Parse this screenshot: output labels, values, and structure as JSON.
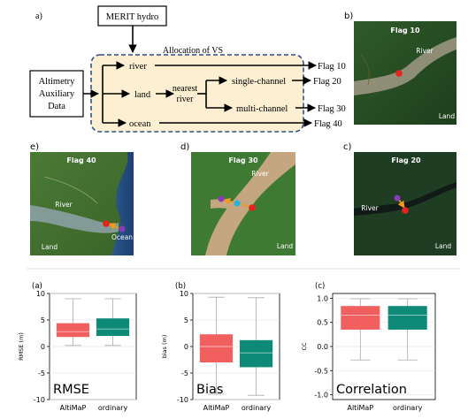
{
  "flowchart": {
    "panel_label": "a)",
    "merit_label": "MERIT hydro",
    "allocation_label": "Allocation of VS",
    "input_lines": [
      "Altimetry",
      "Auxiliary",
      "Data"
    ],
    "nodes": {
      "river": "river",
      "land": "land",
      "nearest_river_lines": [
        "nearest",
        "river"
      ],
      "single_channel": "single-channel",
      "multi_channel": "multi-channel",
      "ocean": "ocean"
    },
    "flags": {
      "flag10": "Flag 10",
      "flag20": "Flag 20",
      "flag30": "Flag 30",
      "flag40": "Flag 40"
    }
  },
  "maps": {
    "b": {
      "panel_label": "b)",
      "title": "Flag 10",
      "river": "River",
      "land": "Land"
    },
    "c": {
      "panel_label": "c)",
      "title": "Flag 20",
      "river": "River",
      "land": "Land"
    },
    "d": {
      "panel_label": "d)",
      "title": "Flag 30",
      "river": "River",
      "land": "Land"
    },
    "e": {
      "panel_label": "e)",
      "title": "Flag 40",
      "river": "River",
      "land": "Land",
      "ocean": "Ocean"
    }
  },
  "colors": {
    "box_fill": "#fdf0d2",
    "box_border": "#2f4f8f",
    "altimap": "#f15f5f",
    "ordinary": "#0d8a78",
    "marker_red": "#e8231e",
    "marker_purple": "#8a3db8",
    "marker_cyan": "#1fb4e6",
    "arrow_orange": "#f29a1a"
  },
  "chart_data": [
    {
      "type": "box",
      "panel_label": "(a)",
      "ylabel": "RMSE (m)",
      "ylim": [
        -10,
        10
      ],
      "yticks": [
        10,
        5,
        0,
        -5,
        -10
      ],
      "categories": [
        "AltiMaP",
        "ordinary"
      ],
      "annotation": "RMSE",
      "boxes": [
        {
          "name": "AltiMaP",
          "whisker_low": 0.2,
          "q1": 1.8,
          "median": 2.8,
          "q3": 4.4,
          "whisker_high": 9.0
        },
        {
          "name": "ordinary",
          "whisker_low": 0.2,
          "q1": 2.0,
          "median": 3.3,
          "q3": 5.3,
          "whisker_high": 9.0
        }
      ]
    },
    {
      "type": "box",
      "panel_label": "(b)",
      "ylabel": "bias (m)",
      "ylim": [
        -10,
        10
      ],
      "yticks": [
        10,
        5,
        0,
        -5,
        -10
      ],
      "categories": [
        "AltiMaP",
        "ordinary"
      ],
      "annotation": "Bias",
      "boxes": [
        {
          "name": "AltiMaP",
          "whisker_low": -9.0,
          "q1": -3.0,
          "median": 0.0,
          "q3": 2.3,
          "whisker_high": 9.3
        },
        {
          "name": "ordinary",
          "whisker_low": -9.2,
          "q1": -3.9,
          "median": -1.2,
          "q3": 1.2,
          "whisker_high": 9.2
        }
      ]
    },
    {
      "type": "box",
      "panel_label": "(c)",
      "ylabel": "CC",
      "ylim": [
        -1.1,
        1.1
      ],
      "yticks": [
        1.0,
        0.5,
        0.0,
        -0.5,
        -1.0
      ],
      "categories": [
        "AltiMaP",
        "ordinary"
      ],
      "annotation": "Correlation",
      "boxes": [
        {
          "name": "AltiMaP",
          "whisker_low": -0.28,
          "q1": 0.35,
          "median": 0.65,
          "q3": 0.84,
          "whisker_high": 0.99
        },
        {
          "name": "ordinary",
          "whisker_low": -0.28,
          "q1": 0.35,
          "median": 0.65,
          "q3": 0.84,
          "whisker_high": 0.99
        }
      ]
    }
  ]
}
